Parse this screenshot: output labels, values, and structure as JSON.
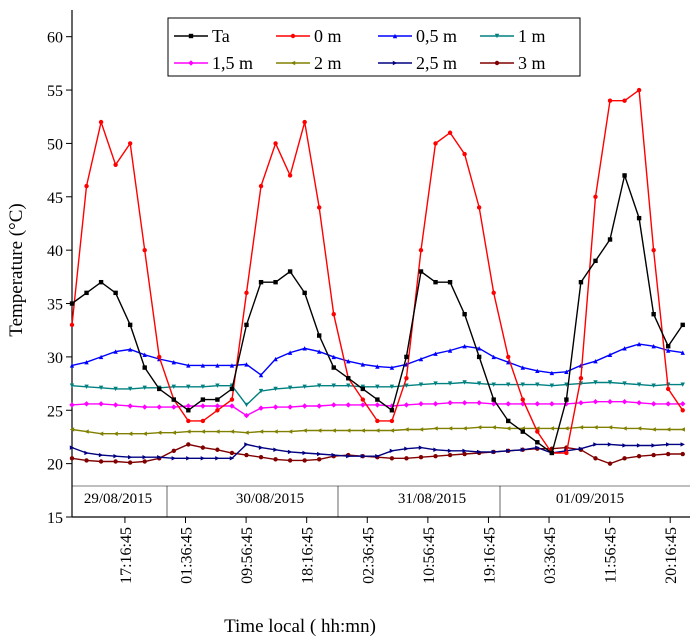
{
  "chart_data": {
    "type": "line",
    "x_label": "Time local ( hh:mn)",
    "y_label": "Temperature (°C)",
    "x": [
      10,
      12,
      14,
      16,
      18,
      20,
      22,
      24,
      26,
      28,
      30,
      32,
      34,
      36,
      38,
      40,
      42,
      44,
      46,
      48,
      50,
      52,
      54,
      56,
      58,
      60,
      62,
      64,
      66,
      68,
      70,
      72,
      74,
      76,
      78,
      80,
      82,
      84,
      86,
      88,
      90,
      92,
      94
    ],
    "xlim": [
      10,
      95
    ],
    "xticks": [
      {
        "value": 17.279,
        "label": "17:16:45"
      },
      {
        "value": 25.612,
        "label": "01:36:45"
      },
      {
        "value": 33.946,
        "label": "09:56:45"
      },
      {
        "value": 42.279,
        "label": "18:16:45"
      },
      {
        "value": 50.612,
        "label": "02:36:45"
      },
      {
        "value": 58.946,
        "label": "10:56:45"
      },
      {
        "value": 67.279,
        "label": "19:16:45"
      },
      {
        "value": 75.612,
        "label": "03:36:45"
      },
      {
        "value": 83.946,
        "label": "11:56:45"
      },
      {
        "value": 92.279,
        "label": "20:16:45"
      }
    ],
    "ylim": [
      15,
      62.5
    ],
    "yticks": [
      15,
      20,
      25,
      30,
      35,
      40,
      45,
      50,
      55,
      60
    ],
    "annotations": [
      "29/08/2015",
      "30/08/2015",
      "31/08/2015",
      "01/09/2015"
    ],
    "series": [
      {
        "name": "Ta",
        "color": "#000000",
        "marker": "square",
        "values": [
          35,
          36,
          37,
          36,
          33,
          29,
          27,
          26,
          25,
          26,
          26,
          27,
          33,
          37,
          37,
          38,
          36,
          32,
          29,
          28,
          27,
          26,
          25,
          30,
          38,
          37,
          37,
          34,
          30,
          26,
          24,
          23,
          22,
          21,
          26,
          37,
          39,
          41,
          47,
          43,
          34,
          31,
          33
        ]
      },
      {
        "name": "0 m",
        "color": "#ff0000",
        "marker": "circle",
        "values": [
          33,
          46,
          52,
          48,
          50,
          40,
          30,
          26,
          24,
          24,
          25,
          26,
          36,
          46,
          50,
          47,
          52,
          44,
          34,
          28,
          26,
          24,
          24,
          28,
          40,
          50,
          51,
          49,
          44,
          36,
          30,
          26,
          23,
          21,
          21,
          28,
          45,
          54,
          54,
          55,
          40,
          27,
          25
        ]
      },
      {
        "name": "0,5 m",
        "color": "#0000ff",
        "marker": "triangle",
        "values": [
          29.2,
          29.5,
          30,
          30.5,
          30.7,
          30.2,
          29.8,
          29.5,
          29.2,
          29.2,
          29.2,
          29.2,
          29.3,
          28.3,
          29.8,
          30.4,
          30.8,
          30.5,
          30,
          29.6,
          29.3,
          29.1,
          29,
          29.3,
          29.8,
          30.3,
          30.6,
          31,
          30.8,
          30,
          29.5,
          29,
          28.7,
          28.5,
          28.6,
          29.2,
          29.6,
          30.2,
          30.8,
          31.2,
          31,
          30.6,
          30.4
        ]
      },
      {
        "name": "1 m",
        "color": "#008080",
        "marker": "triangle-down",
        "values": [
          27.3,
          27.2,
          27.1,
          27,
          27,
          27.1,
          27.1,
          27.2,
          27.2,
          27.2,
          27.3,
          27.3,
          25.5,
          26.8,
          27,
          27.1,
          27.2,
          27.3,
          27.3,
          27.3,
          27.2,
          27.2,
          27.2,
          27.3,
          27.4,
          27.5,
          27.5,
          27.6,
          27.5,
          27.4,
          27.4,
          27.4,
          27.4,
          27.3,
          27.4,
          27.5,
          27.6,
          27.6,
          27.5,
          27.4,
          27.3,
          27.4,
          27.4
        ]
      },
      {
        "name": "1,5 m",
        "color": "#ff00ff",
        "marker": "diamond",
        "values": [
          25.5,
          25.6,
          25.6,
          25.5,
          25.4,
          25.3,
          25.3,
          25.3,
          25.4,
          25.4,
          25.4,
          25.4,
          24.5,
          25.2,
          25.3,
          25.3,
          25.4,
          25.4,
          25.5,
          25.5,
          25.5,
          25.5,
          25.4,
          25.5,
          25.6,
          25.6,
          25.7,
          25.7,
          25.7,
          25.6,
          25.6,
          25.6,
          25.6,
          25.6,
          25.6,
          25.7,
          25.8,
          25.8,
          25.8,
          25.7,
          25.6,
          25.6,
          25.6
        ]
      },
      {
        "name": "2 m",
        "color": "#808000",
        "marker": "triangle-left",
        "values": [
          23.2,
          23,
          22.8,
          22.8,
          22.8,
          22.8,
          22.9,
          22.9,
          23,
          23,
          23,
          23,
          22.9,
          23,
          23,
          23,
          23.1,
          23.1,
          23.1,
          23.1,
          23.1,
          23.1,
          23.1,
          23.2,
          23.2,
          23.3,
          23.3,
          23.3,
          23.4,
          23.4,
          23.3,
          23.3,
          23.3,
          23.3,
          23.3,
          23.4,
          23.4,
          23.4,
          23.3,
          23.3,
          23.2,
          23.2,
          23.2
        ]
      },
      {
        "name": "2,5 m",
        "color": "#000080",
        "marker": "triangle-right",
        "values": [
          21.5,
          21,
          20.8,
          20.7,
          20.6,
          20.6,
          20.6,
          20.5,
          20.5,
          20.5,
          20.5,
          20.5,
          21.8,
          21.5,
          21.3,
          21.1,
          21,
          20.9,
          20.8,
          20.7,
          20.7,
          20.7,
          21.2,
          21.4,
          21.5,
          21.3,
          21.2,
          21.2,
          21.1,
          21.1,
          21.2,
          21.3,
          21.5,
          21,
          21.2,
          21.4,
          21.8,
          21.8,
          21.7,
          21.7,
          21.7,
          21.8,
          21.8
        ]
      },
      {
        "name": "3 m",
        "color": "#800000",
        "marker": "circle",
        "values": [
          20.5,
          20.3,
          20.2,
          20.2,
          20.1,
          20.2,
          20.5,
          21.2,
          21.8,
          21.5,
          21.3,
          21,
          20.8,
          20.6,
          20.4,
          20.3,
          20.3,
          20.4,
          20.7,
          20.8,
          20.7,
          20.6,
          20.5,
          20.5,
          20.6,
          20.7,
          20.8,
          20.9,
          21,
          21.1,
          21.2,
          21.3,
          21.4,
          21.4,
          21.5,
          21.3,
          20.5,
          20,
          20.5,
          20.7,
          20.8,
          20.9,
          20.9
        ]
      }
    ]
  }
}
